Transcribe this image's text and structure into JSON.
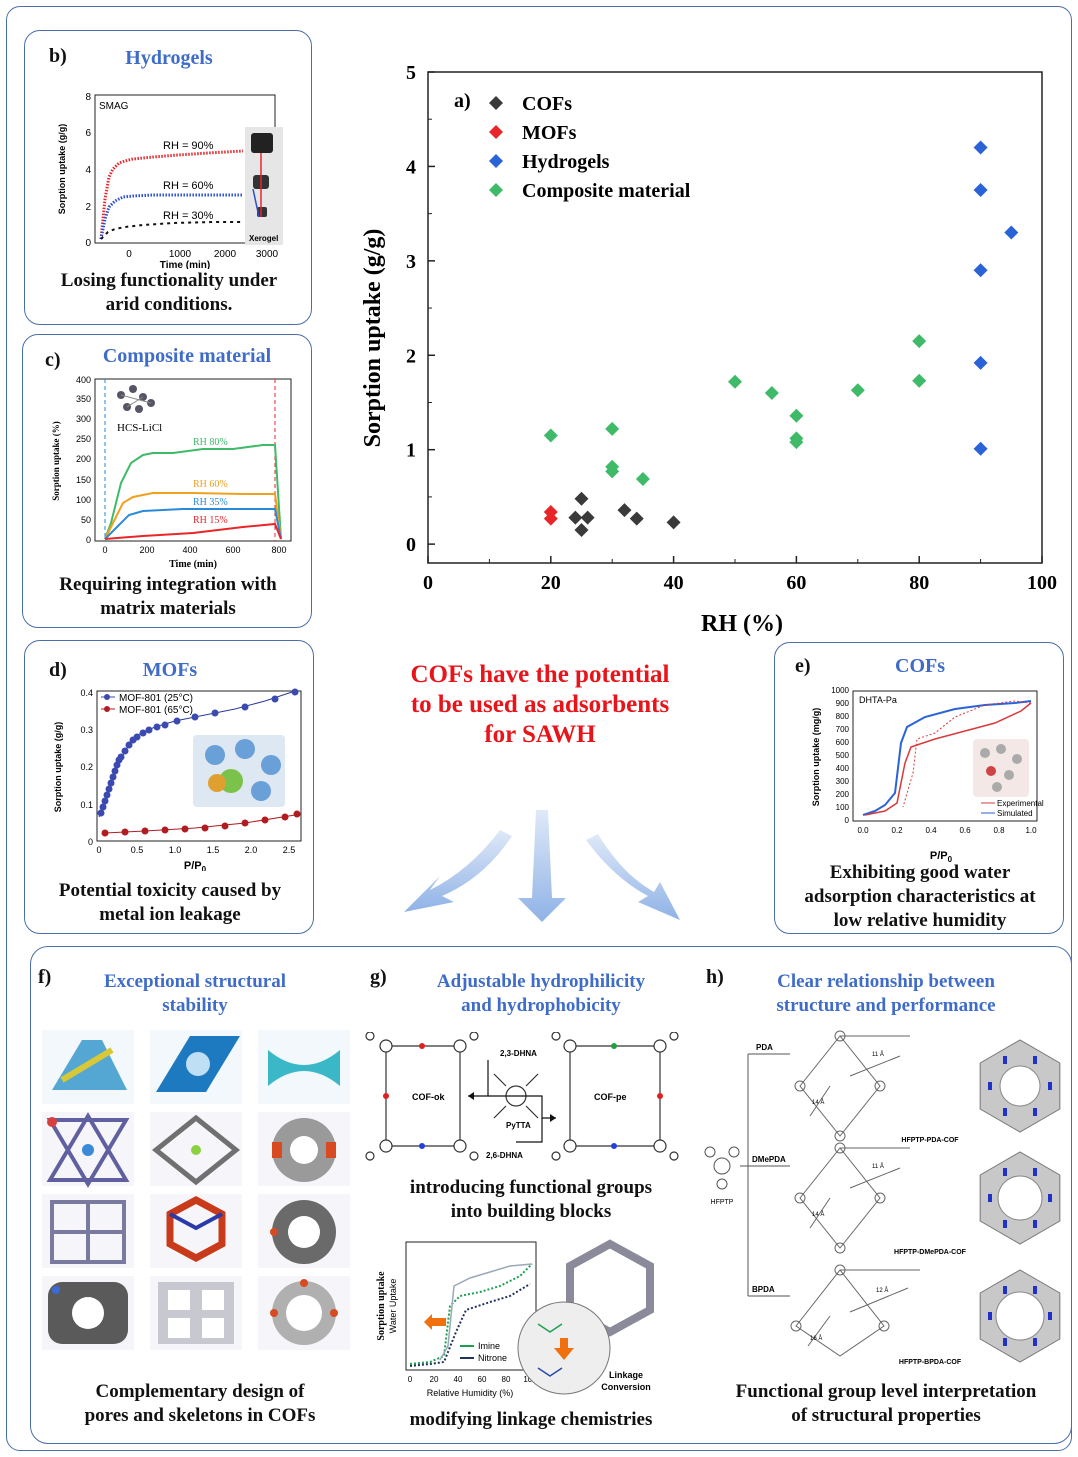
{
  "main_chart": {
    "panel_label": "a)",
    "legend": [
      "COFs",
      "MOFs",
      "Hydrogels",
      "Composite material"
    ],
    "xlabel": "RH (%)",
    "ylabel": "Sorption uptake (g/g)",
    "xticks": [
      "0",
      "20",
      "40",
      "60",
      "80",
      "100"
    ],
    "yticks": [
      "0",
      "1",
      "2",
      "3",
      "4",
      "5"
    ]
  },
  "chart_data": {
    "type": "scatter",
    "xlabel": "RH (%)",
    "ylabel": "Sorption uptake (g/g)",
    "xlim": [
      0,
      100
    ],
    "ylim": [
      -0.2,
      5
    ],
    "legend_position": "top-left",
    "series": [
      {
        "name": "COFs",
        "color": "#3a3a3a",
        "points": [
          [
            24,
            0.28
          ],
          [
            25,
            0.48
          ],
          [
            25,
            0.15
          ],
          [
            26,
            0.28
          ],
          [
            32,
            0.36
          ],
          [
            34,
            0.27
          ],
          [
            40,
            0.23
          ]
        ]
      },
      {
        "name": "MOFs",
        "color": "#e8262a",
        "points": [
          [
            20,
            0.34
          ],
          [
            20,
            0.27
          ]
        ]
      },
      {
        "name": "Hydrogels",
        "color": "#2a62d8",
        "points": [
          [
            90,
            4.2
          ],
          [
            90,
            3.75
          ],
          [
            95,
            3.3
          ],
          [
            90,
            2.9
          ],
          [
            90,
            1.92
          ],
          [
            90,
            1.01
          ]
        ]
      },
      {
        "name": "Composite material",
        "color": "#3fba68",
        "points": [
          [
            20,
            1.15
          ],
          [
            30,
            1.22
          ],
          [
            30,
            0.82
          ],
          [
            30,
            0.77
          ],
          [
            35,
            0.69
          ],
          [
            50,
            1.72
          ],
          [
            56,
            1.6
          ],
          [
            60,
            1.36
          ],
          [
            60,
            1.12
          ],
          [
            60,
            1.08
          ],
          [
            70,
            1.63
          ],
          [
            80,
            2.15
          ],
          [
            80,
            1.73
          ]
        ]
      }
    ]
  },
  "panel_b": {
    "label": "b)",
    "title": "Hydrogels",
    "tag": "SMAG",
    "series": [
      "RH = 90%",
      "RH = 60%",
      "RH = 30%"
    ],
    "photo_label": "Xerogel",
    "xlabel": "Time (min)",
    "ylabel": "Sorption uptake (g/g)",
    "xticks": [
      "0",
      "1000",
      "2000",
      "3000"
    ],
    "yticks": [
      "0",
      "2",
      "4",
      "6",
      "8"
    ],
    "caption": [
      "Losing functionality under",
      "arid conditions."
    ]
  },
  "panel_c": {
    "label": "c)",
    "title": "Composite material",
    "tag": "HCS-LiCl",
    "series": [
      "RH 80%",
      "RH 60%",
      "RH 35%",
      "RH 15%"
    ],
    "xlabel": "Time (min)",
    "ylabel": "Sorption uptake (%)",
    "xticks": [
      "0",
      "200",
      "400",
      "600",
      "800"
    ],
    "yticks": [
      "0",
      "50",
      "100",
      "150",
      "200",
      "250",
      "300",
      "350",
      "400"
    ],
    "caption": [
      "Requiring integration with",
      "matrix materials"
    ]
  },
  "panel_d": {
    "label": "d)",
    "title": "MOFs",
    "series": [
      "MOF-801 (25°C)",
      "MOF-801 (65°C)"
    ],
    "xlabel": "P/P",
    "xlabel_sub": "0",
    "ylabel": "Sorption uptake (g/g)",
    "xticks": [
      "0",
      "0.5",
      "1.0",
      "1.5",
      "2.0",
      "2.5"
    ],
    "yticks": [
      "0",
      "0.1",
      "0.2",
      "0.3",
      "0.4"
    ],
    "caption": [
      "Potential toxicity caused by",
      "metal ion leakage"
    ]
  },
  "panel_e": {
    "label": "e)",
    "title": "COFs",
    "tag": "DHTA-Pa",
    "series": [
      "Experimental",
      "Simulated"
    ],
    "xlabel": "P/P",
    "xlabel_sub": "0",
    "ylabel": "Sorption uptake (mg/g)",
    "xticks": [
      "0.0",
      "0.2",
      "0.4",
      "0.6",
      "0.8",
      "1.0"
    ],
    "yticks": [
      "0",
      "100",
      "200",
      "300",
      "400",
      "500",
      "600",
      "700",
      "800",
      "900",
      "1000"
    ],
    "caption": [
      "Exhibiting good water",
      "adsorption characteristics at",
      "low relative humidity"
    ]
  },
  "center_message": [
    "COFs have the potential",
    "to be used as adsorbents",
    "for SAWH"
  ],
  "panel_f": {
    "label": "f)",
    "title": [
      "Exceptional structural",
      "stability"
    ],
    "caption": [
      "Complementary design of",
      "pores and skeletons in COFs"
    ]
  },
  "panel_g": {
    "label": "g)",
    "title": [
      "Adjustable hydrophilicity",
      "and hydrophobicity"
    ],
    "scheme_labels": [
      "2,3-DHNA",
      "COF-ok",
      "PyTTA",
      "COF-pe",
      "2,6-DHNA"
    ],
    "caption1": [
      "introducing functional groups",
      "into building blocks"
    ],
    "plot_ylabel": [
      "Sorption uptake",
      "Water Uptake"
    ],
    "plot_xlabel": "Relative Humidity (%)",
    "plot_xticks": [
      "0",
      "20",
      "40",
      "60",
      "80",
      "100"
    ],
    "plot_legend": [
      "Imine",
      "Nitrone"
    ],
    "conversion_label": [
      "Linkage",
      "Conversion"
    ],
    "caption2": "modifying linkage chemistries"
  },
  "panel_h": {
    "label": "h)",
    "title": [
      "Clear relationship between",
      "structure and performance"
    ],
    "linkers": [
      "PDA",
      "DMePDA",
      "BPDA"
    ],
    "core": "HFPTP",
    "cof_names": [
      "HFPTP-PDA-COF",
      "HFPTP-DMePDA-COF",
      "HFPTP-BPDA-COF"
    ],
    "distances": [
      [
        "11 Å",
        "14 Å"
      ],
      [
        "11 Å",
        "14 Å"
      ],
      [
        "12 Å",
        "16 Å"
      ]
    ],
    "caption": [
      "Functional group level interpretation",
      "of structural properties"
    ]
  }
}
